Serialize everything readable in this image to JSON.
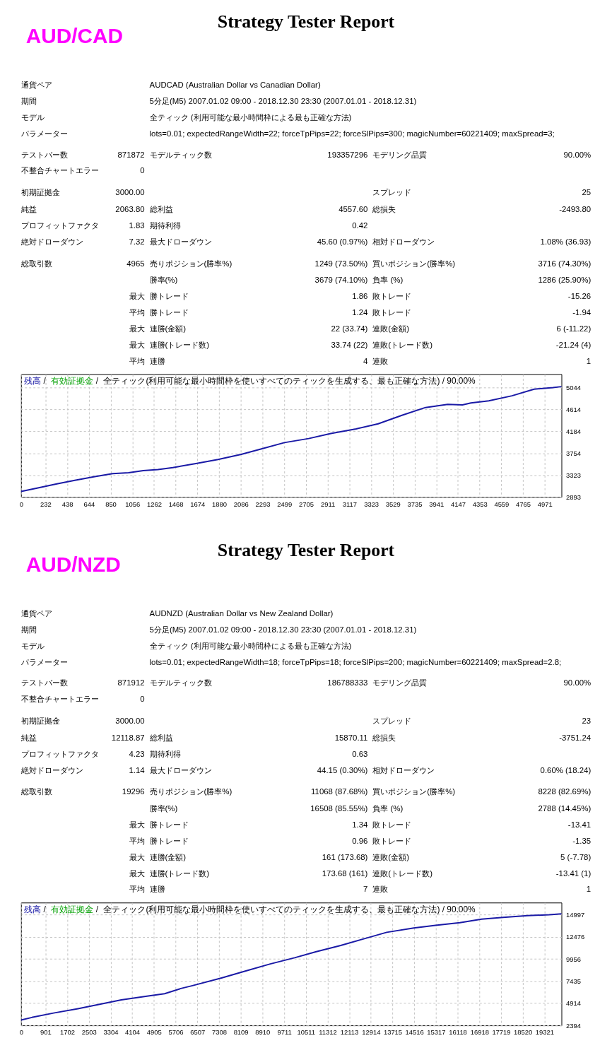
{
  "chart_data": [
    {
      "type": "other",
      "title": "Strategy Tester Report",
      "subtitle": "AUD/CAD",
      "annotations": [
        "通貨ペア",
        "AUDCAD (Australian Dollar vs Canadian Dollar)",
        "期間",
        "5分足(M5) 2007.01.02 09:00 - 2018.12.30 23:30 (2007.01.01 - 2018.12.31)",
        "モデル",
        "全ティック (利用可能な最小時間枠による最も正確な方法)",
        "パラメーター",
        "lots=0.01; expectedRangeWidth=22; forceTpPips=22; forceSlPips=300; magicNumber=60221409; maxSpread=3;",
        "テストバー数",
        "871872",
        "モデルティック数",
        "193357296",
        "モデリング品質",
        "90.00%",
        "不整合チャートエラー",
        "0",
        "初期証拠金",
        "3000.00",
        "スプレッド",
        "25",
        "純益",
        "2063.80",
        "総利益",
        "4557.60",
        "総損失",
        "-2493.80",
        "プロフィットファクタ",
        "1.83",
        "期待利得",
        "0.42",
        "絶対ドローダウン",
        "7.32",
        "最大ドローダウン",
        "45.60 (0.97%)",
        "相対ドローダウン",
        "1.08% (36.93)",
        "総取引数",
        "4965",
        "売りポジション(勝率%)",
        "1249 (73.50%)",
        "買いポジション(勝率%)",
        "3716 (74.30%)",
        "勝率(%)",
        "3679 (74.10%)",
        "負率 (%)",
        "1286 (25.90%)",
        "最大",
        "勝トレード",
        "1.86",
        "敗トレード",
        "-15.26",
        "平均",
        "勝トレード",
        "1.24",
        "敗トレード",
        "-1.94",
        "最大",
        "連勝(金額)",
        "22 (33.74)",
        "連敗(金額)",
        "6 (-11.22)",
        "最大",
        "連勝(トレード数)",
        "33.74 (22)",
        "連敗(トレード数)",
        "-21.24 (4)",
        "平均",
        "連勝",
        "4",
        "連敗",
        "1"
      ]
    },
    {
      "type": "line",
      "x": [
        0,
        160,
        340,
        510,
        690,
        870,
        1020,
        1160,
        1300,
        1440,
        1660,
        1870,
        2090,
        2270,
        2500,
        2730,
        2940,
        3180,
        3390,
        3620,
        3840,
        4050,
        4190,
        4270,
        4440,
        4660,
        4870,
        5050,
        5130
      ],
      "series": [
        {
          "name": "残高",
          "color": "#1a1aa6",
          "values": [
            3000,
            3070,
            3150,
            3220,
            3290,
            3350,
            3370,
            3410,
            3430,
            3470,
            3550,
            3630,
            3730,
            3830,
            3960,
            4040,
            4140,
            4230,
            4330,
            4500,
            4650,
            4710,
            4700,
            4740,
            4780,
            4880,
            5010,
            5040,
            5060
          ]
        },
        {
          "name": "有効証拠金",
          "color": "#00a000",
          "values": [
            null,
            null,
            null,
            null,
            null,
            null,
            null,
            null,
            null,
            null,
            null,
            null,
            null,
            null,
            null,
            null,
            null,
            null,
            null,
            null,
            null,
            null,
            null,
            null,
            null,
            null,
            null,
            null,
            null
          ]
        }
      ],
      "annotations": [
        "/",
        "/",
        "全ティック(利用可能な最小時間枠を使いすべてのティックを生成する、最も正確な方法) / 90.00%"
      ],
      "xlim": [
        0,
        5130
      ],
      "xticks": [
        0,
        232,
        438,
        644,
        850,
        1056,
        1262,
        1468,
        1674,
        1880,
        2086,
        2293,
        2499,
        2705,
        2911,
        3117,
        3323,
        3529,
        3735,
        3941,
        4147,
        4353,
        4559,
        4765,
        4971
      ],
      "ylim": [
        2893,
        5305
      ],
      "yticks": [
        2893,
        3323,
        3754,
        4184,
        4614,
        5044
      ],
      "grid": true,
      "legend": "top left"
    },
    {
      "type": "other",
      "title": "Strategy Tester Report",
      "subtitle": "AUD/NZD",
      "annotations": [
        "通貨ペア",
        "AUDNZD (Australian Dollar vs New Zealand Dollar)",
        "期間",
        "5分足(M5) 2007.01.02 09:00 - 2018.12.30 23:30 (2007.01.01 - 2018.12.31)",
        "モデル",
        "全ティック (利用可能な最小時間枠による最も正確な方法)",
        "パラメーター",
        "lots=0.01; expectedRangeWidth=18; forceTpPips=18; forceSlPips=200; magicNumber=60221409; maxSpread=2.8;",
        "テストバー数",
        "871912",
        "モデルティック数",
        "186788333",
        "モデリング品質",
        "90.00%",
        "不整合チャートエラー",
        "0",
        "初期証拠金",
        "3000.00",
        "スプレッド",
        "23",
        "純益",
        "12118.87",
        "総利益",
        "15870.11",
        "総損失",
        "-3751.24",
        "プロフィットファクタ",
        "4.23",
        "期待利得",
        "0.63",
        "絶対ドローダウン",
        "1.14",
        "最大ドローダウン",
        "44.15 (0.30%)",
        "相対ドローダウン",
        "0.60% (18.24)",
        "総取引数",
        "19296",
        "売りポジション(勝率%)",
        "11068 (87.68%)",
        "買いポジション(勝率%)",
        "8228 (82.69%)",
        "勝率(%)",
        "16508 (85.55%)",
        "負率 (%)",
        "2788 (14.45%)",
        "最大",
        "勝トレード",
        "1.34",
        "敗トレード",
        "-13.41",
        "平均",
        "勝トレード",
        "0.96",
        "敗トレード",
        "-1.35",
        "最大",
        "連勝(金額)",
        "161 (173.68)",
        "連敗(金額)",
        "5 (-7.78)",
        "最大",
        "連勝(トレード数)",
        "173.68 (161)",
        "連敗(トレード数)",
        "-13.41 (1)",
        "平均",
        "連勝",
        "7",
        "連敗",
        "1"
      ]
    },
    {
      "type": "line",
      "x": [
        0,
        400,
        1200,
        2100,
        2900,
        3700,
        4600,
        5300,
        5900,
        6300,
        7400,
        8300,
        9200,
        10100,
        10900,
        11800,
        12700,
        13500,
        14500,
        15300,
        16200,
        17000,
        17800,
        18700,
        19500,
        19950
      ],
      "series": [
        {
          "name": "残高",
          "color": "#1a1aa6",
          "values": [
            3000,
            3300,
            3800,
            4300,
            4800,
            5300,
            5700,
            6000,
            6600,
            6900,
            7800,
            8600,
            9400,
            10100,
            10800,
            11500,
            12300,
            13000,
            13500,
            13800,
            14100,
            14500,
            14700,
            14900,
            15000,
            15100
          ]
        },
        {
          "name": "有効証拠金",
          "color": "#00a000",
          "values": [
            null,
            null,
            null,
            null,
            null,
            null,
            null,
            null,
            null,
            null,
            null,
            null,
            null,
            null,
            null,
            null,
            null,
            null,
            null,
            null,
            null,
            null,
            null,
            null,
            null,
            null
          ]
        }
      ],
      "annotations": [
        "/",
        "/",
        "全ティック(利用可能な最小時間枠を使いすべてのティックを生成する、最も正確な方法) / 90.00%"
      ],
      "xlim": [
        0,
        19950
      ],
      "xticks": [
        0,
        901,
        1702,
        2503,
        3304,
        4104,
        4905,
        5706,
        6507,
        7308,
        8109,
        8910,
        9711,
        10511,
        11312,
        12113,
        12914,
        13715,
        14516,
        15317,
        16118,
        16918,
        17719,
        18520,
        19321
      ],
      "ylim": [
        2394,
        16390
      ],
      "yticks": [
        2394,
        4914,
        7435,
        9956,
        12476,
        14997
      ],
      "grid": true,
      "legend": "top left"
    }
  ]
}
